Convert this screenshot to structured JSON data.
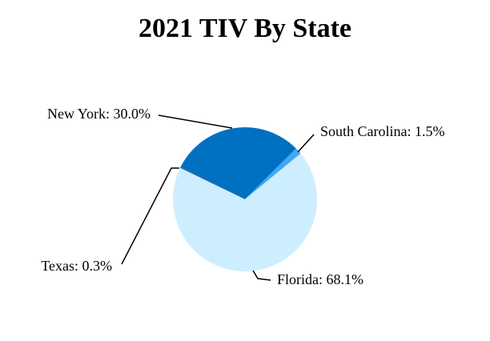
{
  "chart_data": {
    "type": "pie",
    "title": "2021 TIV By State",
    "values": [
      30.0,
      1.5,
      68.1,
      0.3
    ],
    "value_labels": [
      "New York: 30.0%",
      "South Carolina: 1.5%",
      "Florida: 68.1%",
      "Texas: 0.3%"
    ],
    "colors": [
      "#0070c0",
      "#3fa9f5",
      "#cdeeff",
      "#1f5f9f"
    ]
  }
}
